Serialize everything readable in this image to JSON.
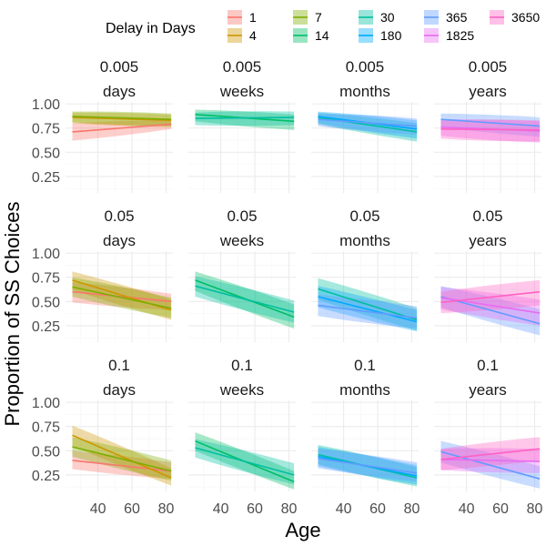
{
  "chart_data": {
    "type": "line",
    "xlabel": "Age",
    "ylabel": "Proportion of SS Choices",
    "x_ticks": [
      40,
      60,
      80
    ],
    "y_ticks": [
      0.25,
      0.5,
      0.75,
      1.0
    ],
    "y_tick_labels": [
      "0.25",
      "0.50",
      "0.75",
      "1.00"
    ],
    "xlim": [
      21,
      84
    ],
    "ylim": [
      0.08,
      1.02
    ],
    "legend": {
      "title": "Delay in Days",
      "placement": "top",
      "entries": [
        {
          "label": "1",
          "color": "#F8766D"
        },
        {
          "label": "4",
          "color": "#CD9600"
        },
        {
          "label": "7",
          "color": "#7CAE00"
        },
        {
          "label": "14",
          "color": "#00BE67"
        },
        {
          "label": "30",
          "color": "#00BFA0"
        },
        {
          "label": "180",
          "color": "#00A9FF"
        },
        {
          "label": "365",
          "color": "#619CFF"
        },
        {
          "label": "1825",
          "color": "#E76BF3"
        },
        {
          "label": "3650",
          "color": "#FF61C3"
        }
      ]
    },
    "facet_rows": [
      "0.005",
      "0.05",
      "0.1"
    ],
    "facet_cols": [
      "days",
      "weeks",
      "months",
      "years"
    ],
    "x_range_data": [
      25,
      83
    ],
    "panels": [
      {
        "row": "0.005",
        "col": "days",
        "series": [
          {
            "delay": "1",
            "color": "#F8766D",
            "y": [
              0.71,
              0.79
            ],
            "lo": [
              0.62,
              0.74
            ],
            "hi": [
              0.8,
              0.83
            ]
          },
          {
            "delay": "4",
            "color": "#CD9600",
            "y": [
              0.86,
              0.83
            ],
            "lo": [
              0.8,
              0.76
            ],
            "hi": [
              0.91,
              0.89
            ]
          },
          {
            "delay": "7",
            "color": "#7CAE00",
            "y": [
              0.87,
              0.84
            ],
            "lo": [
              0.81,
              0.77
            ],
            "hi": [
              0.92,
              0.9
            ]
          }
        ]
      },
      {
        "row": "0.005",
        "col": "weeks",
        "series": [
          {
            "delay": "14",
            "color": "#00BE67",
            "y": [
              0.89,
              0.82
            ],
            "lo": [
              0.82,
              0.73
            ],
            "hi": [
              0.94,
              0.89
            ]
          },
          {
            "delay": "30",
            "color": "#00BFA0",
            "y": [
              0.85,
              0.86
            ],
            "lo": [
              0.78,
              0.78
            ],
            "hi": [
              0.91,
              0.92
            ]
          }
        ]
      },
      {
        "row": "0.005",
        "col": "months",
        "series": [
          {
            "delay": "30",
            "color": "#00BFA0",
            "y": [
              0.86,
              0.71
            ],
            "lo": [
              0.79,
              0.61
            ],
            "hi": [
              0.91,
              0.8
            ]
          },
          {
            "delay": "180",
            "color": "#00A9FF",
            "y": [
              0.87,
              0.74
            ],
            "lo": [
              0.8,
              0.64
            ],
            "hi": [
              0.92,
              0.83
            ]
          },
          {
            "delay": "365",
            "color": "#619CFF",
            "y": [
              0.84,
              0.77
            ],
            "lo": [
              0.77,
              0.68
            ],
            "hi": [
              0.9,
              0.85
            ]
          }
        ]
      },
      {
        "row": "0.005",
        "col": "years",
        "series": [
          {
            "delay": "365",
            "color": "#619CFF",
            "y": [
              0.84,
              0.77
            ],
            "lo": [
              0.76,
              0.66
            ],
            "hi": [
              0.9,
              0.86
            ]
          },
          {
            "delay": "1825",
            "color": "#E76BF3",
            "y": [
              0.76,
              0.72
            ],
            "lo": [
              0.67,
              0.6
            ],
            "hi": [
              0.84,
              0.82
            ]
          },
          {
            "delay": "3650",
            "color": "#FF61C3",
            "y": [
              0.74,
              0.73
            ],
            "lo": [
              0.64,
              0.61
            ],
            "hi": [
              0.83,
              0.83
            ]
          }
        ]
      },
      {
        "row": "0.05",
        "col": "days",
        "series": [
          {
            "delay": "1",
            "color": "#F8766D",
            "y": [
              0.6,
              0.5
            ],
            "lo": [
              0.49,
              0.41
            ],
            "hi": [
              0.7,
              0.58
            ]
          },
          {
            "delay": "4",
            "color": "#CD9600",
            "y": [
              0.72,
              0.41
            ],
            "lo": [
              0.62,
              0.31
            ],
            "hi": [
              0.81,
              0.52
            ]
          },
          {
            "delay": "7",
            "color": "#7CAE00",
            "y": [
              0.65,
              0.43
            ],
            "lo": [
              0.55,
              0.33
            ],
            "hi": [
              0.75,
              0.54
            ]
          }
        ]
      },
      {
        "row": "0.05",
        "col": "weeks",
        "series": [
          {
            "delay": "14",
            "color": "#00BE67",
            "y": [
              0.72,
              0.34
            ],
            "lo": [
              0.61,
              0.22
            ],
            "hi": [
              0.81,
              0.47
            ]
          },
          {
            "delay": "30",
            "color": "#00BFA0",
            "y": [
              0.66,
              0.39
            ],
            "lo": [
              0.55,
              0.28
            ],
            "hi": [
              0.76,
              0.51
            ]
          }
        ]
      },
      {
        "row": "0.05",
        "col": "months",
        "series": [
          {
            "delay": "30",
            "color": "#00BFA0",
            "y": [
              0.63,
              0.31
            ],
            "lo": [
              0.52,
              0.2
            ],
            "hi": [
              0.74,
              0.43
            ]
          },
          {
            "delay": "180",
            "color": "#00A9FF",
            "y": [
              0.55,
              0.29
            ],
            "lo": [
              0.44,
              0.19
            ],
            "hi": [
              0.66,
              0.41
            ]
          },
          {
            "delay": "365",
            "color": "#619CFF",
            "y": [
              0.46,
              0.33
            ],
            "lo": [
              0.35,
              0.22
            ],
            "hi": [
              0.57,
              0.45
            ]
          }
        ]
      },
      {
        "row": "0.05",
        "col": "years",
        "series": [
          {
            "delay": "365",
            "color": "#619CFF",
            "y": [
              0.55,
              0.27
            ],
            "lo": [
              0.44,
              0.15
            ],
            "hi": [
              0.66,
              0.42
            ]
          },
          {
            "delay": "1825",
            "color": "#E76BF3",
            "y": [
              0.54,
              0.38
            ],
            "lo": [
              0.42,
              0.25
            ],
            "hi": [
              0.65,
              0.52
            ]
          },
          {
            "delay": "3650",
            "color": "#FF61C3",
            "y": [
              0.49,
              0.6
            ],
            "lo": [
              0.38,
              0.46
            ],
            "hi": [
              0.6,
              0.72
            ]
          }
        ]
      },
      {
        "row": "0.1",
        "col": "days",
        "series": [
          {
            "delay": "1",
            "color": "#F8766D",
            "y": [
              0.4,
              0.29
            ],
            "lo": [
              0.31,
              0.21
            ],
            "hi": [
              0.5,
              0.38
            ]
          },
          {
            "delay": "4",
            "color": "#CD9600",
            "y": [
              0.66,
              0.22
            ],
            "lo": [
              0.55,
              0.14
            ],
            "hi": [
              0.76,
              0.32
            ]
          },
          {
            "delay": "7",
            "color": "#7CAE00",
            "y": [
              0.54,
              0.29
            ],
            "lo": [
              0.44,
              0.19
            ],
            "hi": [
              0.64,
              0.4
            ]
          }
        ]
      },
      {
        "row": "0.1",
        "col": "weeks",
        "series": [
          {
            "delay": "14",
            "color": "#00BE67",
            "y": [
              0.6,
              0.18
            ],
            "lo": [
              0.5,
              0.1
            ],
            "hi": [
              0.69,
              0.29
            ]
          },
          {
            "delay": "30",
            "color": "#00BFA0",
            "y": [
              0.53,
              0.25
            ],
            "lo": [
              0.43,
              0.15
            ],
            "hi": [
              0.62,
              0.37
            ]
          }
        ]
      },
      {
        "row": "0.1",
        "col": "months",
        "series": [
          {
            "delay": "30",
            "color": "#00BFA0",
            "y": [
              0.46,
              0.22
            ],
            "lo": [
              0.36,
              0.13
            ],
            "hi": [
              0.56,
              0.33
            ]
          },
          {
            "delay": "180",
            "color": "#00A9FF",
            "y": [
              0.44,
              0.24
            ],
            "lo": [
              0.34,
              0.15
            ],
            "hi": [
              0.54,
              0.35
            ]
          },
          {
            "delay": "365",
            "color": "#619CFF",
            "y": [
              0.42,
              0.27
            ],
            "lo": [
              0.32,
              0.18
            ],
            "hi": [
              0.52,
              0.38
            ]
          }
        ]
      },
      {
        "row": "0.1",
        "col": "years",
        "series": [
          {
            "delay": "365",
            "color": "#619CFF",
            "y": [
              0.49,
              0.21
            ],
            "lo": [
              0.38,
              0.11
            ],
            "hi": [
              0.6,
              0.34
            ]
          },
          {
            "delay": "1825",
            "color": "#E76BF3",
            "y": [
              0.41,
              0.39
            ],
            "lo": [
              0.3,
              0.27
            ],
            "hi": [
              0.52,
              0.52
            ]
          },
          {
            "delay": "3650",
            "color": "#FF61C3",
            "y": [
              0.41,
              0.52
            ],
            "lo": [
              0.3,
              0.4
            ],
            "hi": [
              0.52,
              0.64
            ]
          }
        ]
      }
    ]
  }
}
